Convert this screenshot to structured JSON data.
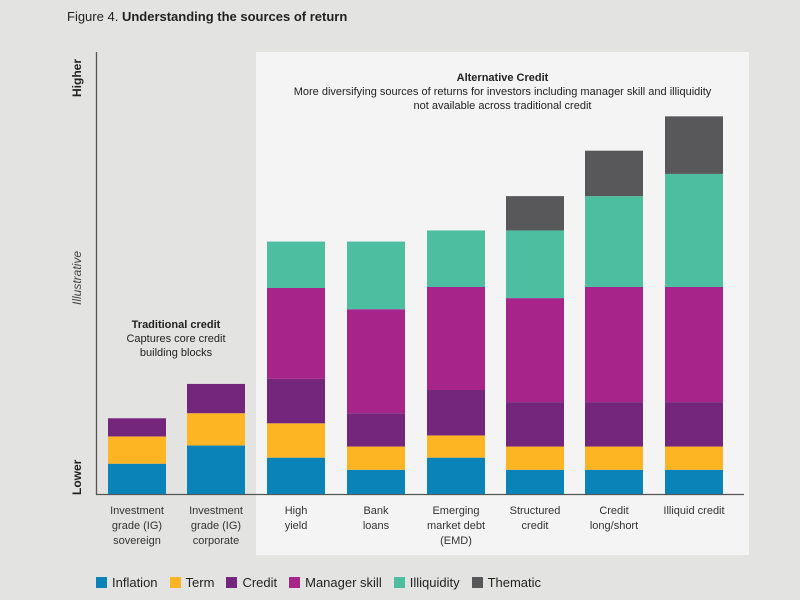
{
  "figure": {
    "prefix": "Figure 4.",
    "title": "Understanding the sources of return"
  },
  "annotations": {
    "alternative": {
      "title": "Alternative Credit",
      "line1": "More diversifying sources of returns for investors including manager skill and illiquidity",
      "line2": "not available across traditional credit"
    },
    "traditional": {
      "title": "Traditional credit",
      "line1": "Captures core credit",
      "line2": "building blocks"
    }
  },
  "chart_data": {
    "type": "bar",
    "stacked": true,
    "title": "Understanding the sources of return",
    "xlabel": "",
    "ylabel": "Illustrative",
    "ylabel_high": "Higher",
    "ylabel_low": "Lower",
    "ylim": [
      0,
      41
    ],
    "categories": [
      [
        "Investment",
        "grade (IG)",
        "sovereign"
      ],
      [
        "Investment",
        "grade (IG)",
        "corporate"
      ],
      [
        "High",
        "yield"
      ],
      [
        "Bank",
        "loans"
      ],
      [
        "Emerging",
        "market debt",
        "(EMD)"
      ],
      [
        "Structured",
        "credit"
      ],
      [
        "Credit",
        "long/short"
      ],
      [
        "Illiquid credit"
      ]
    ],
    "series": [
      {
        "name": "Inflation",
        "color": "#0a84b8",
        "values": [
          3.0,
          4.8,
          3.6,
          2.4,
          3.6,
          2.4,
          2.4,
          2.4
        ]
      },
      {
        "name": "Term",
        "color": "#fdb524",
        "values": [
          2.7,
          3.2,
          3.4,
          2.3,
          2.2,
          2.3,
          2.3,
          2.3
        ]
      },
      {
        "name": "Credit",
        "color": "#74267d",
        "values": [
          1.8,
          2.9,
          4.4,
          3.3,
          4.5,
          4.4,
          4.4,
          4.4
        ]
      },
      {
        "name": "Manager skill",
        "color": "#a7248b",
        "values": [
          0,
          0,
          9.0,
          10.3,
          10.2,
          10.3,
          11.4,
          11.4
        ]
      },
      {
        "name": "Illiquidity",
        "color": "#4dbe9f",
        "values": [
          0,
          0,
          4.6,
          6.7,
          5.6,
          6.7,
          9.0,
          11.2
        ]
      },
      {
        "name": "Thematic",
        "color": "#58585a",
        "values": [
          0,
          0,
          0,
          0,
          0,
          3.4,
          4.5,
          5.7
        ]
      }
    ],
    "grid": false,
    "legend": "bottom-left"
  }
}
